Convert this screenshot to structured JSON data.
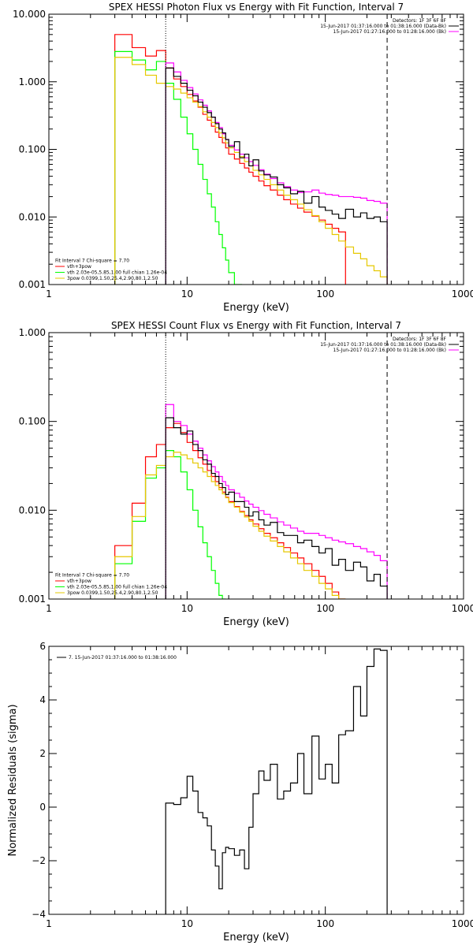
{
  "chart_data": [
    {
      "type": "line",
      "title": "SPEX HESSI Photon Flux vs Energy with Fit Function, Interval 7",
      "xlabel": "Energy (keV)",
      "ylabel": "",
      "xscale": "log",
      "yscale": "log",
      "xlim": [
        1,
        1000
      ],
      "ylim": [
        0.001,
        10
      ],
      "x_ticks": [
        {
          "v": 1,
          "label": "1"
        },
        {
          "v": 10,
          "label": "10"
        },
        {
          "v": 100,
          "label": "100"
        },
        {
          "v": 1000,
          "label": "1000"
        }
      ],
      "y_ticks": [
        {
          "v": 0.001,
          "label": "0.001"
        },
        {
          "v": 0.01,
          "label": "0.010"
        },
        {
          "v": 0.1,
          "label": "0.100"
        },
        {
          "v": 1,
          "label": "1.000"
        },
        {
          "v": 10,
          "label": "10.000"
        }
      ],
      "vlines": [
        {
          "x": 7.0,
          "style": "dotted"
        },
        {
          "x": 280,
          "style": "dashed"
        }
      ],
      "legend_top": {
        "header": "Detectors: 1F 3F 6F 8F",
        "entries": [
          {
            "text": "15-Jun-2017 01:37:16.000 to 01:38:16.000 (Data-Bk)",
            "color": "#000000"
          },
          {
            "text": "15-Jun-2017 01:27:16.000 to 01:28:16.000 (Bk)",
            "color": "#ff00ff"
          }
        ]
      },
      "legend_bottom": {
        "header": "Fit Interval 7   Chi-square = 7.70",
        "entries": [
          {
            "text": "vth+3pow",
            "color": "#ff0000"
          },
          {
            "text": "vth 2.03e-05,5.85,1.00  full chian 1.26e-04",
            "color": "#00ff00"
          },
          {
            "text": "3pow 0.0399,1.50,25.4,2.90,80.1,2.50",
            "color": "#e6c800"
          }
        ]
      },
      "series": [
        {
          "color": "#ff0000",
          "edges": [
            3,
            4,
            5,
            6,
            7,
            8,
            9,
            10,
            11,
            12,
            13,
            14,
            15,
            16,
            17,
            18,
            19,
            20,
            22,
            24,
            26,
            28,
            30,
            33,
            36,
            40,
            45,
            50,
            56,
            63,
            70,
            80,
            90,
            100,
            112,
            125,
            140
          ],
          "values": [
            5.0,
            3.2,
            2.4,
            2.9,
            1.6,
            1.1,
            0.85,
            0.65,
            0.52,
            0.42,
            0.33,
            0.27,
            0.22,
            0.18,
            0.15,
            0.125,
            0.105,
            0.085,
            0.072,
            0.062,
            0.053,
            0.046,
            0.04,
            0.034,
            0.029,
            0.025,
            0.021,
            0.018,
            0.0155,
            0.0135,
            0.0118,
            0.0103,
            0.009,
            0.0078,
            0.0068,
            0.006
          ]
        },
        {
          "color": "#00ff00",
          "edges": [
            3,
            4,
            5,
            6,
            7,
            8,
            9,
            10,
            11,
            12,
            13,
            14,
            15,
            16,
            17,
            18,
            19,
            20,
            22,
            24,
            25
          ],
          "values": [
            2.8,
            2.1,
            1.5,
            2.0,
            0.95,
            0.55,
            0.3,
            0.17,
            0.1,
            0.06,
            0.036,
            0.022,
            0.014,
            0.0085,
            0.0055,
            0.0035,
            0.0023,
            0.0015,
            0.001,
            0.001
          ]
        },
        {
          "color": "#e6c800",
          "edges": [
            3,
            4,
            5,
            6,
            7,
            8,
            9,
            10,
            11,
            12,
            13,
            14,
            15,
            16,
            17,
            18,
            19,
            20,
            22,
            24,
            26,
            28,
            30,
            33,
            36,
            40,
            45,
            50,
            56,
            63,
            70,
            80,
            90,
            100,
            112,
            125,
            140,
            160,
            180,
            200,
            225,
            250,
            280
          ],
          "values": [
            2.3,
            1.8,
            1.25,
            0.95,
            0.85,
            0.78,
            0.68,
            0.58,
            0.5,
            0.43,
            0.36,
            0.3,
            0.25,
            0.21,
            0.175,
            0.148,
            0.125,
            0.105,
            0.09,
            0.078,
            0.066,
            0.057,
            0.049,
            0.042,
            0.036,
            0.03,
            0.025,
            0.021,
            0.018,
            0.0155,
            0.0128,
            0.0105,
            0.0085,
            0.0068,
            0.0055,
            0.0044,
            0.0036,
            0.0029,
            0.0024,
            0.0019,
            0.0016,
            0.0013
          ]
        },
        {
          "color": "#ff00ff",
          "edges": [
            7,
            8,
            9,
            10,
            11,
            12,
            13,
            14,
            15,
            16,
            17,
            18,
            19,
            20,
            22,
            24,
            26,
            28,
            30,
            33,
            36,
            40,
            45,
            50,
            56,
            63,
            70,
            80,
            90,
            100,
            112,
            125,
            140,
            160,
            180,
            200,
            225,
            250,
            280
          ],
          "values": [
            1.9,
            1.4,
            1.05,
            0.82,
            0.66,
            0.54,
            0.45,
            0.37,
            0.3,
            0.25,
            0.21,
            0.17,
            0.14,
            0.115,
            0.098,
            0.085,
            0.075,
            0.066,
            0.058,
            0.05,
            0.043,
            0.037,
            0.032,
            0.028,
            0.025,
            0.023,
            0.0235,
            0.025,
            0.0225,
            0.0215,
            0.021,
            0.02,
            0.02,
            0.0195,
            0.019,
            0.0175,
            0.017,
            0.016
          ]
        },
        {
          "color": "#000000",
          "edges": [
            7,
            8,
            9,
            10,
            11,
            12,
            13,
            14,
            15,
            16,
            17,
            18,
            19,
            20,
            22,
            24,
            26,
            28,
            30,
            33,
            36,
            40,
            45,
            50,
            56,
            63,
            70,
            80,
            90,
            100,
            112,
            125,
            140,
            160,
            180,
            200,
            225,
            250,
            280
          ],
          "values": [
            1.6,
            1.2,
            0.95,
            0.75,
            0.62,
            0.5,
            0.42,
            0.35,
            0.3,
            0.24,
            0.2,
            0.175,
            0.14,
            0.11,
            0.13,
            0.075,
            0.085,
            0.057,
            0.07,
            0.048,
            0.042,
            0.039,
            0.03,
            0.027,
            0.022,
            0.024,
            0.016,
            0.02,
            0.014,
            0.0125,
            0.011,
            0.0095,
            0.013,
            0.01,
            0.0115,
            0.0095,
            0.01,
            0.0085
          ]
        }
      ]
    },
    {
      "type": "line",
      "title": "SPEX HESSI Count Flux vs Energy with Fit Function, Interval 7",
      "xlabel": "Energy (keV)",
      "ylabel": "",
      "xscale": "log",
      "yscale": "log",
      "xlim": [
        1,
        1000
      ],
      "ylim": [
        0.001,
        1
      ],
      "x_ticks": [
        {
          "v": 1,
          "label": "1"
        },
        {
          "v": 10,
          "label": "10"
        },
        {
          "v": 100,
          "label": "100"
        },
        {
          "v": 1000,
          "label": "1000"
        }
      ],
      "y_ticks": [
        {
          "v": 0.001,
          "label": "0.001"
        },
        {
          "v": 0.01,
          "label": "0.010"
        },
        {
          "v": 0.1,
          "label": "0.100"
        },
        {
          "v": 1,
          "label": "1.000"
        }
      ],
      "vlines": [
        {
          "x": 7.0,
          "style": "dotted"
        },
        {
          "x": 280,
          "style": "dashed"
        }
      ],
      "legend_top": {
        "header": "Detectors: 1F 3F 6F 8F",
        "entries": [
          {
            "text": "15-Jun-2017 01:37:16.000 to 01:38:16.000 (Data-Bk)",
            "color": "#000000"
          },
          {
            "text": "15-Jun-2017 01:27:16.000 to 01:28:16.000 (Bk)",
            "color": "#ff00ff"
          }
        ]
      },
      "legend_bottom": {
        "header": "Fit Interval 7   Chi-square = 7.70",
        "entries": [
          {
            "text": "vth+3pow",
            "color": "#ff0000"
          },
          {
            "text": "vth 2.03e-05,5.85,1.00  full chian 1.26e-04",
            "color": "#00ff00"
          },
          {
            "text": "3pow 0.0399,1.50,25.4,2.90,80.1,2.50",
            "color": "#e6c800"
          }
        ]
      },
      "series": [
        {
          "color": "#ff0000",
          "edges": [
            3,
            4,
            5,
            6,
            7,
            8,
            9,
            10,
            11,
            12,
            13,
            14,
            15,
            16,
            17,
            18,
            19,
            20,
            22,
            24,
            26,
            28,
            30,
            33,
            36,
            40,
            45,
            50,
            56,
            63,
            70,
            80,
            90,
            100,
            112,
            125,
            140
          ],
          "values": [
            0.004,
            0.012,
            0.04,
            0.055,
            0.085,
            0.095,
            0.075,
            0.058,
            0.047,
            0.039,
            0.033,
            0.028,
            0.024,
            0.021,
            0.018,
            0.016,
            0.014,
            0.0125,
            0.011,
            0.0097,
            0.0087,
            0.0078,
            0.007,
            0.0062,
            0.0055,
            0.0049,
            0.0043,
            0.0038,
            0.0033,
            0.0029,
            0.0025,
            0.0021,
            0.0018,
            0.0015,
            0.0012,
            0.001
          ]
        },
        {
          "color": "#00ff00",
          "edges": [
            3,
            4,
            5,
            6,
            7,
            8,
            9,
            10,
            11,
            12,
            13,
            14,
            15,
            16,
            17,
            18,
            19
          ],
          "values": [
            0.0025,
            0.0075,
            0.023,
            0.03,
            0.047,
            0.04,
            0.027,
            0.017,
            0.01,
            0.0065,
            0.0043,
            0.003,
            0.0021,
            0.0015,
            0.0011,
            0.001
          ]
        },
        {
          "color": "#e6c800",
          "edges": [
            3,
            4,
            5,
            6,
            7,
            8,
            9,
            10,
            11,
            12,
            13,
            14,
            15,
            16,
            17,
            18,
            19,
            20,
            22,
            24,
            26,
            28,
            30,
            33,
            36,
            40,
            45,
            50,
            56,
            63,
            70,
            80,
            90,
            100,
            112,
            125,
            140
          ],
          "values": [
            0.003,
            0.0085,
            0.025,
            0.032,
            0.04,
            0.045,
            0.042,
            0.038,
            0.034,
            0.03,
            0.027,
            0.024,
            0.021,
            0.019,
            0.017,
            0.0153,
            0.0138,
            0.0122,
            0.0108,
            0.0095,
            0.0084,
            0.0075,
            0.0066,
            0.0058,
            0.0051,
            0.0045,
            0.0039,
            0.0034,
            0.0029,
            0.0025,
            0.0021,
            0.0018,
            0.0015,
            0.0013,
            0.0011,
            0.001
          ]
        },
        {
          "color": "#ff00ff",
          "edges": [
            7,
            8,
            9,
            10,
            11,
            12,
            13,
            14,
            15,
            16,
            17,
            18,
            19,
            20,
            22,
            24,
            26,
            28,
            30,
            33,
            36,
            40,
            45,
            50,
            56,
            63,
            70,
            80,
            90,
            100,
            112,
            125,
            140,
            160,
            180,
            200,
            225,
            250,
            280
          ],
          "values": [
            0.155,
            0.1,
            0.09,
            0.072,
            0.06,
            0.05,
            0.042,
            0.036,
            0.031,
            0.027,
            0.024,
            0.021,
            0.019,
            0.017,
            0.0155,
            0.014,
            0.0127,
            0.0117,
            0.0108,
            0.0099,
            0.009,
            0.0082,
            0.0074,
            0.0068,
            0.0063,
            0.0058,
            0.0055,
            0.0055,
            0.0052,
            0.0049,
            0.0046,
            0.0044,
            0.0042,
            0.0039,
            0.0037,
            0.0034,
            0.0031,
            0.0027
          ]
        },
        {
          "color": "#000000",
          "edges": [
            7,
            8,
            9,
            10,
            11,
            12,
            13,
            14,
            15,
            16,
            17,
            18,
            19,
            20,
            22,
            24,
            26,
            28,
            30,
            33,
            36,
            40,
            45,
            50,
            56,
            63,
            70,
            80,
            90,
            100,
            112,
            125,
            140,
            160,
            180,
            200,
            225,
            250,
            280
          ],
          "values": [
            0.11,
            0.085,
            0.072,
            0.078,
            0.055,
            0.047,
            0.037,
            0.033,
            0.026,
            0.024,
            0.02,
            0.018,
            0.015,
            0.016,
            0.0125,
            0.0125,
            0.0108,
            0.0086,
            0.0096,
            0.0078,
            0.0068,
            0.0073,
            0.0056,
            0.0052,
            0.0052,
            0.0043,
            0.0046,
            0.0039,
            0.0033,
            0.0037,
            0.0024,
            0.0028,
            0.0021,
            0.0026,
            0.0023,
            0.0016,
            0.0019,
            0.0014
          ]
        }
      ]
    },
    {
      "type": "line",
      "title": "",
      "xlabel": "Energy (keV)",
      "ylabel": "Normalized Residuals (sigma)",
      "xscale": "log",
      "yscale": "linear",
      "xlim": [
        1,
        1000
      ],
      "ylim": [
        -4,
        6
      ],
      "x_ticks": [
        {
          "v": 1,
          "label": "1"
        },
        {
          "v": 10,
          "label": "10"
        },
        {
          "v": 100,
          "label": "100"
        },
        {
          "v": 1000,
          "label": "1000"
        }
      ],
      "y_ticks": [
        {
          "v": -4,
          "label": "−4"
        },
        {
          "v": -2,
          "label": "−2"
        },
        {
          "v": 0,
          "label": "0"
        },
        {
          "v": 2,
          "label": "2"
        },
        {
          "v": 4,
          "label": "4"
        },
        {
          "v": 6,
          "label": "6"
        }
      ],
      "legend_top": {
        "header": "",
        "entries": [
          {
            "text": "7. 15-Jun-2017 01:37:16.000 to 01:38:16.000",
            "color": "#000000"
          }
        ]
      },
      "series": [
        {
          "color": "#000000",
          "edges": [
            7,
            8,
            9,
            10,
            11,
            12,
            13,
            14,
            15,
            16,
            17,
            18,
            19,
            20,
            22,
            24,
            26,
            28,
            30,
            33,
            36,
            40,
            45,
            50,
            56,
            63,
            70,
            80,
            90,
            100,
            112,
            125,
            140,
            160,
            180,
            200,
            225,
            250,
            280
          ],
          "values": [
            0.15,
            0.1,
            0.35,
            1.15,
            0.6,
            -0.2,
            -0.4,
            -0.7,
            -1.6,
            -2.2,
            -3.05,
            -1.7,
            -1.5,
            -1.55,
            -1.8,
            -1.6,
            -2.3,
            -0.75,
            0.5,
            1.35,
            1.0,
            1.6,
            0.3,
            0.6,
            0.9,
            2.0,
            0.5,
            2.65,
            1.05,
            1.6,
            0.9,
            2.7,
            2.85,
            4.5,
            3.4,
            5.25,
            5.9,
            5.85
          ]
        }
      ]
    }
  ]
}
